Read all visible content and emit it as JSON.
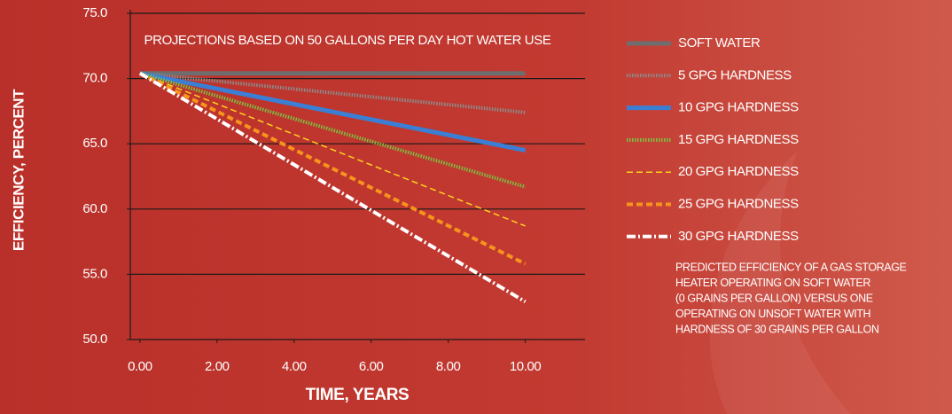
{
  "chart_data": {
    "type": "line",
    "annotation": "PROJECTIONS BASED ON 50 GALLONS PER DAY HOT WATER USE",
    "x_label": "TIME, YEARS",
    "y_label": "EFFICIENCY, PERCENT",
    "x": [
      0,
      10
    ],
    "series": [
      {
        "name": "SOFT WATER",
        "color": "#6e6e6e",
        "style": "solid",
        "linewidth": 5,
        "values": [
          70.4,
          70.4
        ]
      },
      {
        "name": "5 GPG HARDNESS",
        "color": "#8c8c8c",
        "style": "dotted",
        "linewidth": 4,
        "values": [
          70.4,
          67.4
        ]
      },
      {
        "name": "10 GPG HARDNESS",
        "color": "#3b7fd4",
        "style": "solid",
        "linewidth": 5,
        "values": [
          70.4,
          64.5
        ]
      },
      {
        "name": "15 GPG HARDNESS",
        "color": "#7cc142",
        "style": "dotted",
        "linewidth": 4,
        "values": [
          70.4,
          61.7
        ]
      },
      {
        "name": "20 GPG HARDNESS",
        "color": "#ffd21f",
        "style": "dashed",
        "linewidth": 1.5,
        "values": [
          70.4,
          58.7
        ]
      },
      {
        "name": "25 GPG HARDNESS",
        "color": "#f7941d",
        "style": "dashed",
        "linewidth": 4,
        "values": [
          70.4,
          55.8
        ]
      },
      {
        "name": "30 GPG HARDNESS",
        "color": "#ffffff",
        "style": "dashdot",
        "linewidth": 4,
        "values": [
          70.4,
          52.9
        ]
      }
    ],
    "xlim": [
      -0.25,
      11.55
    ],
    "ylim": [
      50,
      75
    ],
    "xticks": [
      {
        "value": 0,
        "label": "0.00"
      },
      {
        "value": 2,
        "label": "2.00"
      },
      {
        "value": 4,
        "label": "4.00"
      },
      {
        "value": 6,
        "label": "6.00"
      },
      {
        "value": 8,
        "label": "8.00"
      },
      {
        "value": 10,
        "label": "10.00"
      }
    ],
    "yticks": [
      {
        "value": 50,
        "label": "50.0"
      },
      {
        "value": 55,
        "label": "55.0"
      },
      {
        "value": 60,
        "label": "60.0"
      },
      {
        "value": 65,
        "label": "65.0"
      },
      {
        "value": 70,
        "label": "70.0"
      },
      {
        "value": 75,
        "label": "75.0"
      }
    ],
    "grid": true,
    "legend": "right",
    "note": [
      "PREDICTED EFFICIENCY OF A GAS STORAGE",
      "HEATER OPERATING ON SOFT WATER",
      "(0 GRAINS PER GALLON) VERSUS ONE",
      "OPERATING ON UNSOFT WATER WITH",
      "HARDNESS OF 30 GRAINS PER GALLON"
    ]
  }
}
